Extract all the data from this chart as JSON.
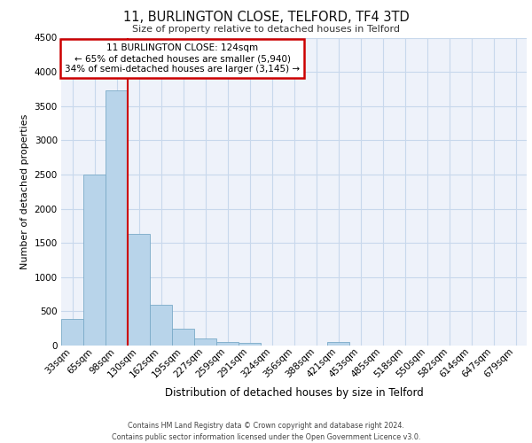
{
  "title_line1": "11, BURLINGTON CLOSE, TELFORD, TF4 3TD",
  "title_line2": "Size of property relative to detached houses in Telford",
  "xlabel": "Distribution of detached houses by size in Telford",
  "ylabel": "Number of detached properties",
  "footer_line1": "Contains HM Land Registry data © Crown copyright and database right 2024.",
  "footer_line2": "Contains public sector information licensed under the Open Government Licence v3.0.",
  "categories": [
    "33sqm",
    "65sqm",
    "98sqm",
    "130sqm",
    "162sqm",
    "195sqm",
    "227sqm",
    "259sqm",
    "291sqm",
    "324sqm",
    "356sqm",
    "388sqm",
    "421sqm",
    "453sqm",
    "485sqm",
    "518sqm",
    "550sqm",
    "582sqm",
    "614sqm",
    "647sqm",
    "679sqm"
  ],
  "values": [
    390,
    2500,
    3730,
    1630,
    590,
    250,
    110,
    55,
    40,
    0,
    0,
    0,
    50,
    0,
    0,
    0,
    0,
    0,
    0,
    0,
    0
  ],
  "bar_color": "#b8d4ea",
  "bar_edge_color": "#7aaac8",
  "grid_color": "#c8d8ec",
  "background_color": "#eef2fa",
  "annotation_box_color": "#ffffff",
  "annotation_border_color": "#cc0000",
  "property_line_color": "#cc0000",
  "property_label": "11 BURLINGTON CLOSE: 124sqm",
  "annotation_line2": "← 65% of detached houses are smaller (5,940)",
  "annotation_line3": "34% of semi-detached houses are larger (3,145) →",
  "ylim": [
    0,
    4500
  ],
  "yticks": [
    0,
    500,
    1000,
    1500,
    2000,
    2500,
    3000,
    3500,
    4000,
    4500
  ],
  "vline_x_index": 3
}
